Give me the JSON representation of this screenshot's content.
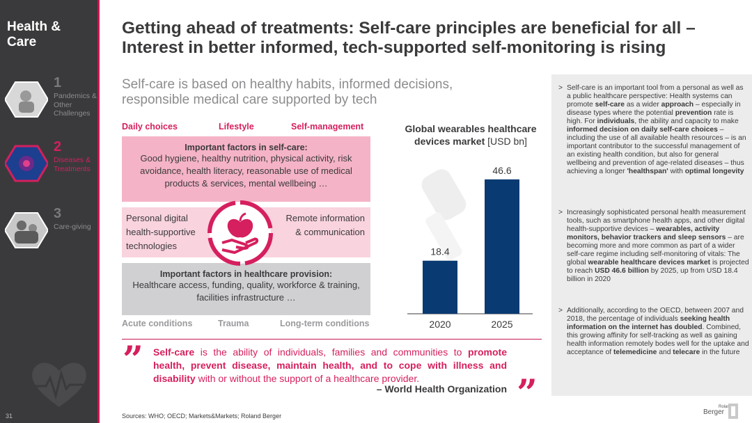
{
  "sidebar": {
    "title": "Health & Care",
    "items": [
      {
        "num": "1",
        "label": "Pandemics & Other Challenges",
        "active": false
      },
      {
        "num": "2",
        "label": "Diseases & Treatments",
        "active": true
      },
      {
        "num": "3",
        "label": "Care-giving",
        "active": false
      }
    ],
    "page_number": "31"
  },
  "header": {
    "title_line1": "Getting ahead of treatments: Self-care principles are beneficial for all –",
    "title_line2": "Interest in better informed, tech-supported self-monitoring is rising",
    "subtitle_line1": "Self-care is based on healthy habits, informed decisions,",
    "subtitle_line2": "responsible medical care supported by tech"
  },
  "diagram": {
    "top_labels": [
      "Daily choices",
      "Lifestyle",
      "Self-management"
    ],
    "self_care_heading": "Important factors in self-care:",
    "self_care_body": "Good hygiene, healthy nutrition, physical activity, risk avoidance, health literacy, reasonable use of medical products & services, mental wellbeing …",
    "mid_left": "Personal digital health-supportive technologies",
    "mid_right": "Remote information & communication",
    "provision_heading": "Important factors in healthcare provision:",
    "provision_body": "Healthcare access, funding, quality, workforce & training, facilities infrastructure …",
    "bottom_labels": [
      "Acute conditions",
      "Trauma",
      "Long-term conditions"
    ]
  },
  "quote": {
    "text_html": "<b>Self-care</b> is the ability of individuals, families and communities to <b>promote health, prevent disease, maintain health, and to cope with illness and disability</b> with or without the support of a healthcare provider.",
    "source": "– World Health Organization"
  },
  "chart_title_bold": "Global wearables healthcare devices market",
  "chart_title_unit": "[USD bn]",
  "chart_data": {
    "type": "bar",
    "categories": [
      "2020",
      "2025"
    ],
    "values": [
      18.4,
      46.6
    ],
    "value_labels": [
      "18.4",
      "46.6"
    ],
    "title": "Global wearables healthcare devices market [USD bn]",
    "bar_color": "#0a3a72",
    "ylim": [
      0,
      55
    ]
  },
  "right_panel": {
    "bullets": [
      "Self-care is an important tool from a personal as well as a public healthcare perspective: Health systems can promote <b>self-care</b> as a wider <b>approach</b> – especially in disease types where the potential <b>prevention</b> rate is high. For <b>individuals</b>, the ability and capacity to make <b>informed decision on daily self-care choices</b> – including the use of all available health resources – is an important contributor to the successful management of an existing health condition, but also for general wellbeing and prevention of age-related diseases – thus achieving a longer <b>'healthspan'</b> with <b>optimal longevity</b>",
      "Increasingly sophisticated personal health measurement tools, such as smartphone health apps, and other digital health-supportive devices – <b>wearables, activity monitors, behavior trackers and sleep sensors</b> – are becoming more and more common as part of a wider self-care regime including self-monitoring of vitals: The global <b>wearable healthcare devices market</b> is projected to reach <b>USD 46.6 billion</b> by 2025, up from USD 18.4 billion in 2020",
      "Additionally, according to the OECD, between 2007 and 2018, the percentage of individuals <b>seeking health information on the internet has doubled</b>. Combined, this growing affinity for self-tracking as well as gaining health information remotely bodes well for the uptake and acceptance of <b>telemedicine</b> and <b>telecare</b> in the future"
    ]
  },
  "sources": "Sources: WHO; OECD; Markets&Markets; Roland Berger",
  "logo": {
    "small": "Roland",
    "big": "Berger"
  },
  "colors": {
    "accent": "#d51f5e",
    "dark": "#3a3a3c",
    "bar": "#0a3a72"
  }
}
